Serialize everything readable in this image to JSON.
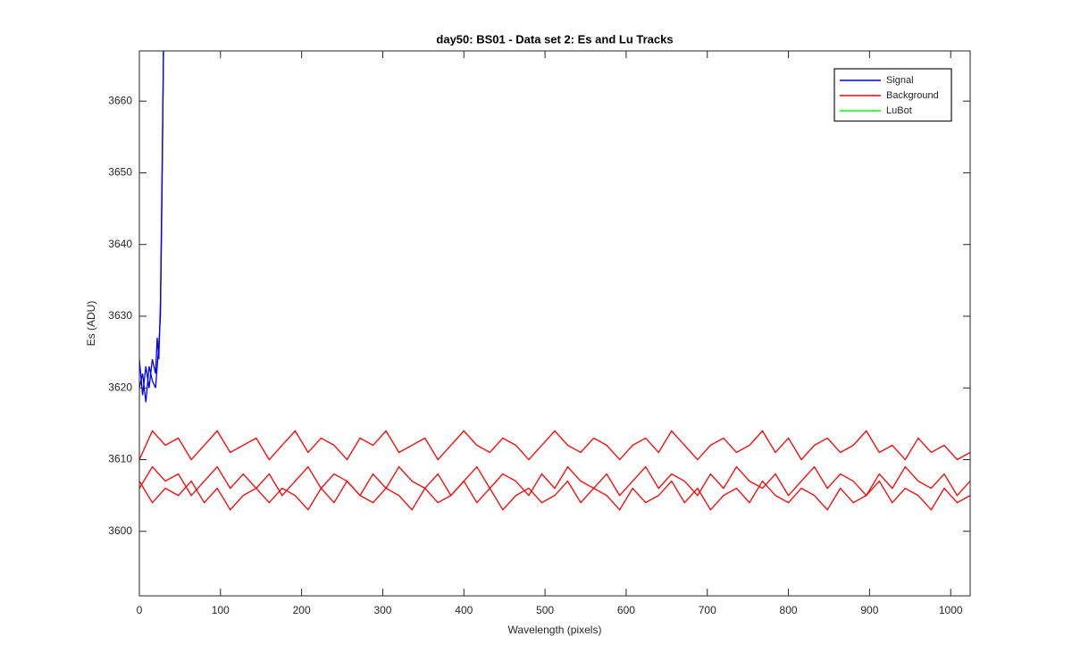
{
  "chart_data": {
    "type": "line",
    "title": "day50: BS01 - Data set 2: Es and Lu Tracks",
    "x_label": "Wavelength (pixels)",
    "y_label": "Es (ADU)",
    "xlim": [
      0,
      1024
    ],
    "ylim": [
      3591,
      3667
    ],
    "xticks": [
      0,
      100,
      200,
      300,
      400,
      500,
      600,
      700,
      800,
      900,
      1000
    ],
    "yticks": [
      3600,
      3610,
      3620,
      3630,
      3640,
      3650,
      3660
    ],
    "grid": false,
    "legend": "upper right",
    "series": [
      {
        "name": "Signal",
        "color": "#0000ff",
        "x": [
          0,
          4,
          8,
          12,
          16,
          20,
          22,
          24,
          26,
          28,
          30
        ],
        "values": [
          [
            3624,
            3619,
            3623,
            3620,
            3624,
            3622,
            3627,
            3624,
            3632,
            3650,
            3670
          ],
          [
            3620,
            3622,
            3618,
            3623,
            3621,
            3620,
            3623,
            3626,
            3630,
            3648,
            3670
          ]
        ]
      },
      {
        "name": "Background",
        "color": "#ff0000",
        "x": [
          0,
          16,
          32,
          48,
          64,
          80,
          96,
          112,
          128,
          144,
          160,
          176,
          192,
          208,
          224,
          240,
          256,
          272,
          288,
          304,
          320,
          336,
          352,
          368,
          384,
          400,
          416,
          432,
          448,
          464,
          480,
          496,
          512,
          528,
          544,
          560,
          576,
          592,
          608,
          624,
          640,
          656,
          672,
          688,
          704,
          720,
          736,
          752,
          768,
          784,
          800,
          816,
          832,
          848,
          864,
          880,
          896,
          912,
          928,
          944,
          960,
          976,
          992,
          1008,
          1024
        ],
        "values": [
          [
            3610,
            3614,
            3612,
            3613,
            3610,
            3612,
            3614,
            3611,
            3612,
            3613,
            3610,
            3612,
            3614,
            3611,
            3613,
            3612,
            3610,
            3613,
            3612,
            3614,
            3611,
            3612,
            3613,
            3610,
            3612,
            3614,
            3612,
            3611,
            3613,
            3612,
            3610,
            3612,
            3614,
            3612,
            3611,
            3613,
            3612,
            3610,
            3612,
            3613,
            3611,
            3614,
            3612,
            3610,
            3612,
            3613,
            3611,
            3612,
            3614,
            3611,
            3613,
            3610,
            3612,
            3613,
            3611,
            3612,
            3614,
            3611,
            3612,
            3610,
            3613,
            3611,
            3612,
            3610,
            3611
          ],
          [
            3606,
            3609,
            3607,
            3608,
            3605,
            3607,
            3609,
            3606,
            3608,
            3606,
            3608,
            3605,
            3607,
            3609,
            3606,
            3608,
            3607,
            3605,
            3608,
            3606,
            3609,
            3607,
            3606,
            3608,
            3605,
            3607,
            3609,
            3606,
            3608,
            3607,
            3605,
            3608,
            3606,
            3609,
            3607,
            3606,
            3608,
            3605,
            3607,
            3609,
            3606,
            3608,
            3607,
            3605,
            3608,
            3606,
            3609,
            3607,
            3606,
            3608,
            3605,
            3607,
            3609,
            3606,
            3608,
            3607,
            3605,
            3608,
            3606,
            3609,
            3607,
            3606,
            3608,
            3605,
            3607
          ],
          [
            3607,
            3604,
            3606,
            3605,
            3607,
            3604,
            3606,
            3603,
            3605,
            3606,
            3604,
            3606,
            3605,
            3603,
            3606,
            3604,
            3607,
            3605,
            3604,
            3606,
            3605,
            3603,
            3606,
            3604,
            3605,
            3607,
            3604,
            3606,
            3603,
            3605,
            3606,
            3604,
            3605,
            3607,
            3604,
            3606,
            3605,
            3603,
            3606,
            3604,
            3605,
            3607,
            3604,
            3606,
            3603,
            3605,
            3606,
            3604,
            3607,
            3605,
            3604,
            3606,
            3605,
            3603,
            3606,
            3604,
            3605,
            3607,
            3604,
            3606,
            3605,
            3603,
            3606,
            3604,
            3605
          ]
        ]
      },
      {
        "name": "LuBot",
        "color": "#00ff00"
      }
    ]
  }
}
